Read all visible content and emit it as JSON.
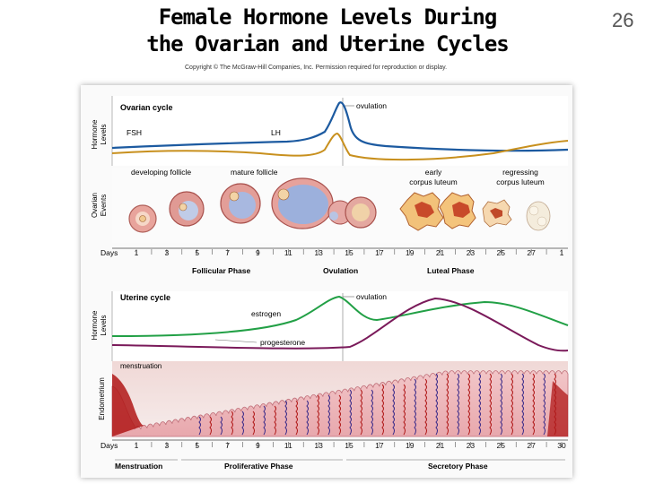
{
  "slide": {
    "title_line1": "Female Hormone Levels During",
    "title_line2": "the Ovarian and Uterine Cycles",
    "page_number": "26",
    "copyright": "Copyright © The McGraw-Hill Companies, Inc. Permission required for reproduction or display."
  },
  "ovarian_panel": {
    "title": "Ovarian cycle",
    "y_axis_label_1": "Hormone",
    "y_axis_label_2": "Levels",
    "fsh_label": "FSH",
    "lh_label": "LH",
    "ovulation_label": "ovulation",
    "colors": {
      "FSH": "#c8901e",
      "LH": "#1c5aa0"
    }
  },
  "ovarian_events": {
    "axis_label_1": "Ovarian",
    "axis_label_2": "Events",
    "labels": {
      "developing": "developing follicle",
      "mature": "mature follicle",
      "early_1": "early",
      "early_2": "corpus luteum",
      "regressing_1": "regressing",
      "regressing_2": "corpus luteum"
    }
  },
  "days_axis_top": {
    "label": "Days",
    "ticks": [
      "1",
      "3",
      "5",
      "7",
      "9",
      "11",
      "13",
      "15",
      "17",
      "19",
      "21",
      "23",
      "25",
      "27",
      "1"
    ]
  },
  "phases_top": {
    "follicular": "Follicular Phase",
    "ovulation": "Ovulation",
    "luteal": "Luteal Phase"
  },
  "uterine_panel": {
    "title": "Uterine cycle",
    "y_axis_label_1": "Hormone",
    "y_axis_label_2": "Levels",
    "estrogen_label": "estrogen",
    "progesterone_label": "progesterone",
    "ovulation_label": "ovulation",
    "colors": {
      "estrogen": "#22a046",
      "progesterone": "#7a1a5a"
    }
  },
  "endometrium_panel": {
    "axis_label": "Endometrium",
    "menstruation_label": "menstruation",
    "colors": {
      "tissue": "#e2a0a4",
      "vessel": "#3a2a8a",
      "blood": "#b01818"
    }
  },
  "days_axis_bottom": {
    "label": "Days",
    "ticks": [
      "1",
      "3",
      "5",
      "7",
      "9",
      "11",
      "13",
      "15",
      "17",
      "19",
      "21",
      "23",
      "25",
      "27",
      "30"
    ]
  },
  "phases_bottom": {
    "menstruation": "Menstruation",
    "proliferative": "Proliferative Phase",
    "secretory": "Secretory Phase"
  }
}
